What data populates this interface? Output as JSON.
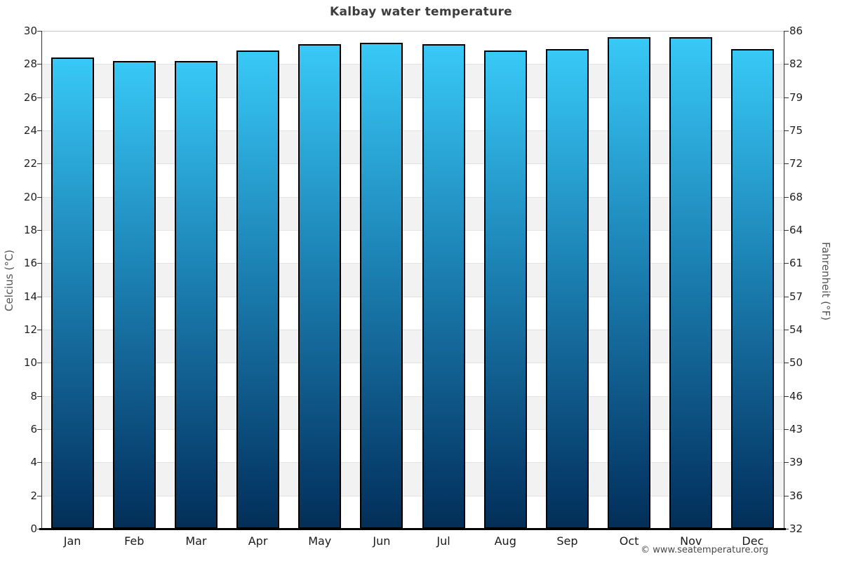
{
  "title": "Kalbay water temperature",
  "copyright": "© www.seatemperature.org",
  "chart_data": {
    "type": "bar",
    "title": "Kalbay water temperature",
    "categories": [
      "Jan",
      "Feb",
      "Mar",
      "Apr",
      "May",
      "Jun",
      "Jul",
      "Aug",
      "Sep",
      "Oct",
      "Nov",
      "Dec"
    ],
    "values": [
      28.4,
      28.2,
      28.2,
      28.8,
      29.2,
      29.3,
      29.2,
      28.8,
      28.9,
      29.6,
      29.6,
      28.9
    ],
    "ylabel_left": "Celcius (°C)",
    "ylabel_right": "Fahrenheit (°F)",
    "ylim": [
      0,
      30
    ],
    "yticks_celsius": [
      0,
      2,
      4,
      6,
      8,
      10,
      12,
      14,
      16,
      18,
      20,
      22,
      24,
      26,
      28,
      30
    ],
    "yticks_fahrenheit": [
      32,
      36,
      39,
      43,
      46,
      50,
      54,
      57,
      61,
      64,
      68,
      72,
      75,
      79,
      82,
      86
    ],
    "legend": "none",
    "grid": "alternating horizontal bands every 2 degrees C with light gridlines",
    "colors": {
      "bar_top": "#38c9f7",
      "bar_mid": "#1c82b4",
      "bar_deep": "#063d6c",
      "bar_bottom": "#032f57",
      "bar_border": "#000000",
      "band_gray": "#f2f2f2",
      "band_white": "#ffffff",
      "gridline": "#e2e2e2",
      "axis_line": "#333333",
      "title_text": "#3d3d3d",
      "label_text": "#222222"
    }
  }
}
